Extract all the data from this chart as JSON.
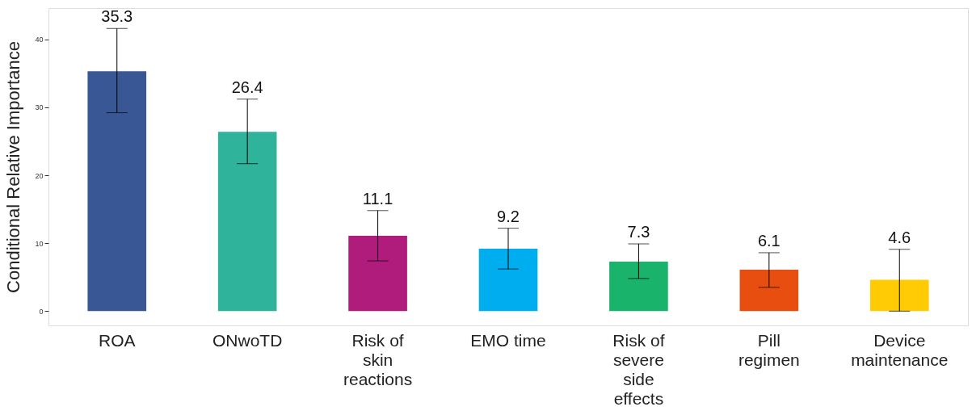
{
  "chart_data": {
    "type": "bar",
    "ylabel": "Conditional Relative Importance",
    "categories": [
      "ROA",
      "ONwoTD",
      "Risk of\nskin\nreactions",
      "EMO time",
      "Risk of\nsevere\nside\neffects",
      "Pill\nregimen",
      "Device\nmaintenance"
    ],
    "values": [
      35.3,
      26.4,
      11.1,
      9.2,
      7.3,
      6.1,
      4.6
    ],
    "colors": [
      "#3a5795",
      "#2fb39b",
      "#b01c7c",
      "#00aeef",
      "#1ab36c",
      "#e84e0f",
      "#ffcb05"
    ],
    "errors": [
      [
        29.2,
        41.6
      ],
      [
        21.7,
        31.2
      ],
      [
        7.4,
        14.8
      ],
      [
        6.2,
        12.2
      ],
      [
        4.8,
        9.9
      ],
      [
        3.5,
        8.6
      ],
      [
        0,
        9.1
      ]
    ],
    "ylim": [
      -2.1,
      44.6
    ],
    "yticks": [
      0,
      10,
      20,
      30,
      40
    ],
    "grid": false,
    "data_labels": true
  }
}
